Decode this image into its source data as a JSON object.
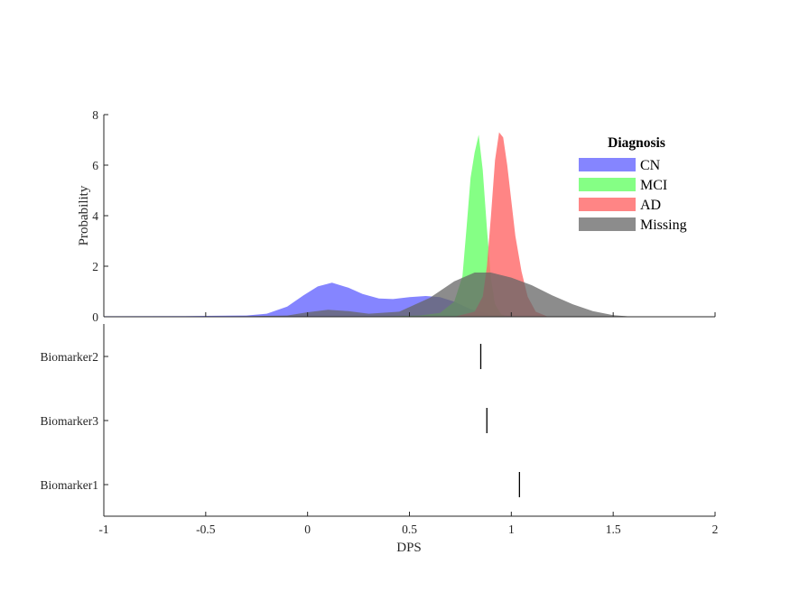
{
  "chart_data": [
    {
      "type": "area",
      "ylabel": "Probability",
      "xlim": [
        -1,
        2
      ],
      "ylim": [
        0,
        8
      ],
      "y_ticks": [
        0,
        2,
        4,
        6,
        8
      ],
      "legend": {
        "title": "Diagnosis",
        "placement": "top-right"
      },
      "grid": false,
      "series": [
        {
          "name": "CN",
          "color": "#6666ff",
          "opacity": 0.8,
          "x": [
            -1,
            -0.6,
            -0.3,
            -0.2,
            -0.1,
            -0.02,
            0.05,
            0.12,
            0.2,
            0.27,
            0.35,
            0.42,
            0.5,
            0.58,
            0.65,
            0.72,
            0.8,
            0.9,
            1.0,
            1.1
          ],
          "y": [
            0.02,
            0.03,
            0.05,
            0.12,
            0.4,
            0.85,
            1.2,
            1.35,
            1.15,
            0.9,
            0.72,
            0.7,
            0.78,
            0.82,
            0.78,
            0.6,
            0.3,
            0.1,
            0.03,
            0.0
          ]
        },
        {
          "name": "MCI",
          "color": "#66ff66",
          "opacity": 0.8,
          "x": [
            -1,
            0.4,
            0.55,
            0.65,
            0.72,
            0.76,
            0.78,
            0.8,
            0.82,
            0.84,
            0.86,
            0.88,
            0.9,
            0.92,
            0.95,
            0.98
          ],
          "y": [
            0.01,
            0.02,
            0.05,
            0.15,
            0.6,
            1.6,
            3.5,
            5.5,
            6.5,
            7.2,
            5.8,
            3.5,
            1.5,
            0.5,
            0.1,
            0.0
          ]
        },
        {
          "name": "AD",
          "color": "#ff6666",
          "opacity": 0.8,
          "x": [
            0.72,
            0.82,
            0.86,
            0.88,
            0.9,
            0.92,
            0.94,
            0.96,
            0.98,
            1.0,
            1.02,
            1.05,
            1.08,
            1.12,
            1.18
          ],
          "y": [
            0.0,
            0.2,
            0.8,
            2.0,
            4.0,
            6.2,
            7.3,
            7.1,
            6.0,
            4.6,
            3.2,
            1.8,
            0.8,
            0.2,
            0.0
          ]
        },
        {
          "name": "Missing",
          "color": "#666666",
          "opacity": 0.75,
          "x": [
            -1,
            -0.3,
            -0.1,
            0.0,
            0.1,
            0.2,
            0.3,
            0.45,
            0.6,
            0.72,
            0.82,
            0.9,
            1.0,
            1.1,
            1.2,
            1.3,
            1.4,
            1.5,
            1.6
          ],
          "y": [
            0.0,
            0.02,
            0.05,
            0.18,
            0.28,
            0.22,
            0.12,
            0.2,
            0.75,
            1.4,
            1.75,
            1.75,
            1.55,
            1.25,
            0.85,
            0.5,
            0.22,
            0.06,
            0.0
          ]
        }
      ]
    },
    {
      "type": "scatter",
      "xlabel": "DPS",
      "xlim": [
        -1,
        2
      ],
      "x_ticks": [
        -1,
        -0.5,
        0,
        0.5,
        1,
        1.5,
        2
      ],
      "x_tick_labels": [
        "-1",
        "-0.5",
        "0",
        "0.5",
        "1",
        "1.5",
        "2"
      ],
      "categories": [
        "Biomarker2",
        "Biomarker3",
        "Biomarker1"
      ],
      "values": [
        0.85,
        0.88,
        1.04
      ],
      "marker": "vertical-line",
      "marker_color": "#000000"
    }
  ]
}
